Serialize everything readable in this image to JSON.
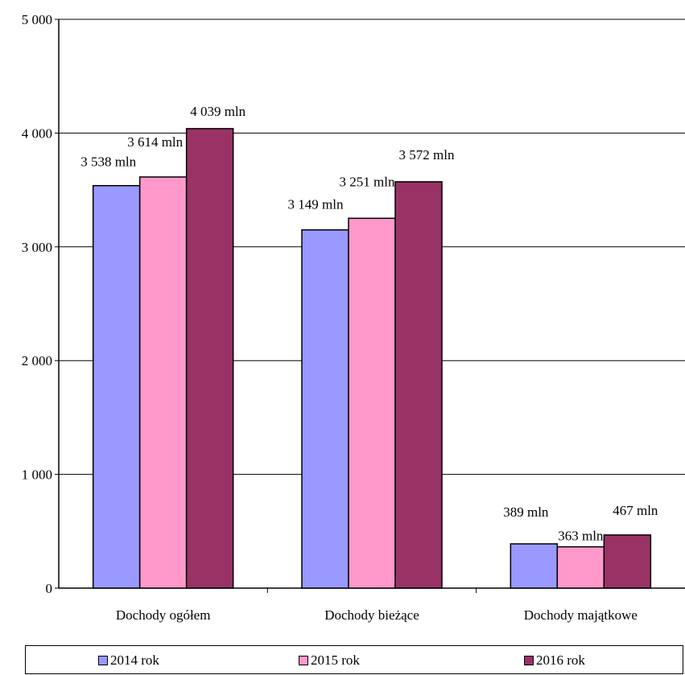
{
  "chart_data": {
    "type": "bar",
    "categories": [
      "Dochody ogółem",
      "Dochody bieżące",
      "Dochody majątkowe"
    ],
    "series": [
      {
        "name": "2014 rok",
        "color": "#9999ff",
        "values": [
          3538,
          3149,
          389
        ],
        "labels": [
          "3 538 mln",
          "3 149 mln",
          "389 mln"
        ]
      },
      {
        "name": "2015 rok",
        "color": "#ff99cc",
        "values": [
          3614,
          3251,
          363
        ],
        "labels": [
          "3 614 mln",
          "3 251 mln",
          "363 mln"
        ]
      },
      {
        "name": "2016 rok",
        "color": "#993366",
        "values": [
          4039,
          3572,
          467
        ],
        "labels": [
          "4 039 mln",
          "3 572 mln",
          "467 mln"
        ]
      }
    ],
    "yticks": [
      {
        "value": 0,
        "label": "0"
      },
      {
        "value": 1000,
        "label": "1 000"
      },
      {
        "value": 2000,
        "label": "2 000"
      },
      {
        "value": 3000,
        "label": "3 000"
      },
      {
        "value": 4000,
        "label": "4 000"
      },
      {
        "value": 5000,
        "label": "5 000"
      }
    ],
    "ylim": [
      0,
      5000
    ],
    "grid": true,
    "legend_position": "bottom"
  }
}
